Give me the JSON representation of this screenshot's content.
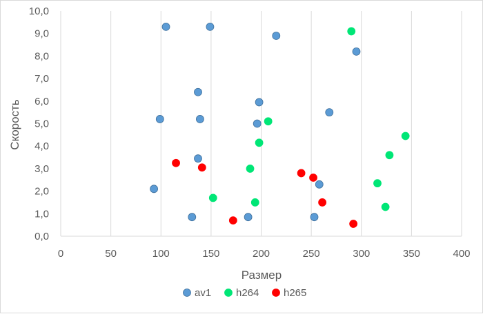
{
  "chart_data": {
    "type": "scatter",
    "title": "",
    "xlabel": "Размер",
    "ylabel": "Скорость",
    "xlim": [
      0,
      400
    ],
    "ylim": [
      0,
      10
    ],
    "x_ticks": [
      "0",
      "50",
      "100",
      "150",
      "200",
      "250",
      "300",
      "350",
      "400"
    ],
    "y_ticks": [
      "0,0",
      "1,0",
      "2,0",
      "3,0",
      "4,0",
      "5,0",
      "6,0",
      "7,0",
      "8,0",
      "9,0",
      "10,0"
    ],
    "grid": "vertical",
    "legend": "bottom",
    "series": [
      {
        "name": "av1",
        "color": "#5b9bd5",
        "points": [
          [
            105,
            9.3
          ],
          [
            149,
            9.3
          ],
          [
            215,
            8.9
          ],
          [
            295,
            8.2
          ],
          [
            137,
            6.4
          ],
          [
            198,
            5.95
          ],
          [
            99,
            5.2
          ],
          [
            139,
            5.2
          ],
          [
            196,
            5.0
          ],
          [
            268,
            5.5
          ],
          [
            137,
            3.45
          ],
          [
            93,
            2.1
          ],
          [
            258,
            2.3
          ],
          [
            131,
            0.85
          ],
          [
            187,
            0.85
          ],
          [
            253,
            0.85
          ]
        ]
      },
      {
        "name": "h264",
        "color": "#00e676",
        "points": [
          [
            290,
            9.1
          ],
          [
            207,
            5.1
          ],
          [
            198,
            4.15
          ],
          [
            344,
            4.45
          ],
          [
            328,
            3.6
          ],
          [
            189,
            3.0
          ],
          [
            316,
            2.35
          ],
          [
            152,
            1.7
          ],
          [
            194,
            1.5
          ],
          [
            324,
            1.3
          ]
        ]
      },
      {
        "name": "h265",
        "color": "#ff0000",
        "points": [
          [
            115,
            3.25
          ],
          [
            141,
            3.05
          ],
          [
            240,
            2.8
          ],
          [
            252,
            2.6
          ],
          [
            261,
            1.5
          ],
          [
            172,
            0.7
          ],
          [
            292,
            0.55
          ]
        ]
      }
    ]
  }
}
